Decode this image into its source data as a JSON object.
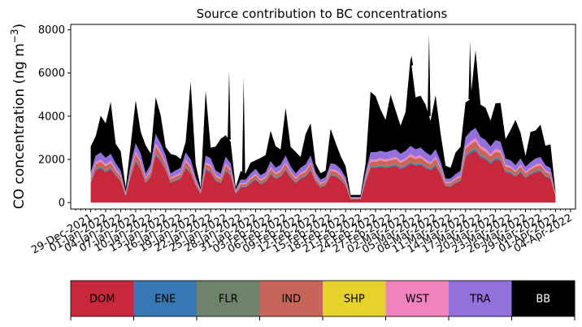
{
  "chart_data": {
    "type": "area",
    "title": "Source contribution to BC concentrations",
    "ylabel": "CO concentration (ng m$^{-3}$)",
    "ylabel_text": "CO concentration (ng m",
    "ylabel_unit_exp": "−3",
    "ylabel_close": ")",
    "xlabel": "",
    "ylim": [
      -300,
      8250
    ],
    "yticks": [
      0,
      2000,
      4000,
      6000,
      8000
    ],
    "yticklabels": [
      "0",
      "2000",
      "4000",
      "6000",
      "8000"
    ],
    "xlim_days": [
      -4,
      97
    ],
    "xticks_days": [
      0,
      3,
      6,
      9,
      12,
      15,
      18,
      21,
      24,
      27,
      30,
      33,
      36,
      39,
      42,
      45,
      48,
      51,
      54,
      57,
      60,
      63,
      66,
      69,
      72,
      75,
      78,
      81,
      84,
      87,
      90,
      93,
      96
    ],
    "xticklabels": [
      "29-Dec-2021",
      "01-Jan-2022",
      "04-Jan-2022",
      "07-Jan-2022",
      "10-Jan-2022",
      "13-Jan-2022",
      "16-Jan-2022",
      "19-Jan-2022",
      "22-Jan-2022",
      "25-Jan-2022",
      "28-Jan-2022",
      "31-Jan-2022",
      "03-Feb-2022",
      "06-Feb-2022",
      "09-Feb-2022",
      "12-Feb-2022",
      "15-Feb-2022",
      "18-Feb-2022",
      "21-Feb-2022",
      "24-Feb-2022",
      "27-Feb-2022",
      "02-Mar-2022",
      "05-Mar-2022",
      "08-Mar-2022",
      "11-Mar-2022",
      "14-Mar-2022",
      "17-Mar-2022",
      "20-Mar-2022",
      "23-Mar-2022",
      "26-Mar-2022",
      "29-Mar-2022",
      "01-Apr-2022",
      "04-Apr-2022"
    ],
    "x_days": [
      0,
      1,
      2,
      3,
      4,
      5,
      6,
      7,
      8,
      9,
      10,
      11,
      12,
      13,
      14,
      15,
      16,
      17,
      18,
      19,
      20,
      21,
      22,
      23,
      24,
      25,
      26,
      27,
      28,
      29,
      30,
      31,
      32,
      33,
      34,
      35,
      36,
      37,
      38,
      39,
      40,
      41,
      42,
      43,
      44,
      45,
      46,
      47,
      48,
      49,
      50,
      51,
      52,
      53,
      54,
      55,
      56,
      57,
      58,
      59,
      60,
      61,
      62,
      63,
      64,
      65,
      66,
      67,
      68,
      69,
      70,
      71,
      72,
      73,
      74,
      75,
      76,
      77,
      78,
      79,
      80,
      81,
      82,
      83,
      84,
      85,
      86,
      87,
      88,
      89,
      90,
      91,
      92,
      93
    ],
    "series": [
      {
        "name": "DOM",
        "color": "#c8283c",
        "values": [
          900,
          1500,
          1600,
          1400,
          1550,
          1250,
          1000,
          300,
          1200,
          1900,
          1550,
          900,
          1200,
          2200,
          1900,
          1500,
          900,
          1000,
          1100,
          1600,
          1350,
          800,
          400,
          1500,
          1400,
          1000,
          900,
          1450,
          1250,
          400,
          700,
          700,
          900,
          1050,
          850,
          950,
          1300,
          1100,
          1200,
          1500,
          1150,
          900,
          1100,
          1200,
          1500,
          950,
          700,
          800,
          1250,
          1200,
          1050,
          800,
          150,
          150,
          150,
          950,
          1600,
          1600,
          1650,
          1600,
          1650,
          1700,
          1550,
          1650,
          1800,
          1700,
          1750,
          1600,
          1500,
          1700,
          1300,
          750,
          750,
          900,
          1000,
          2100,
          2300,
          2400,
          2100,
          2000,
          1800,
          2000,
          1950,
          1400,
          1350,
          1200,
          1400,
          1150,
          1300,
          1400,
          1450,
          1200,
          1100,
          300
        ]
      },
      {
        "name": "ENE",
        "color": "#3778b4",
        "values": [
          40,
          50,
          50,
          50,
          50,
          40,
          30,
          20,
          40,
          60,
          50,
          40,
          40,
          70,
          60,
          50,
          40,
          40,
          40,
          50,
          50,
          30,
          20,
          50,
          50,
          40,
          40,
          50,
          40,
          20,
          30,
          30,
          40,
          40,
          30,
          40,
          50,
          40,
          40,
          50,
          40,
          40,
          40,
          40,
          50,
          40,
          30,
          30,
          40,
          40,
          40,
          30,
          10,
          10,
          10,
          40,
          50,
          50,
          50,
          50,
          50,
          60,
          50,
          50,
          60,
          60,
          60,
          50,
          50,
          60,
          50,
          30,
          30,
          30,
          40,
          70,
          70,
          80,
          70,
          60,
          60,
          60,
          60,
          50,
          50,
          40,
          50,
          40,
          40,
          50,
          50,
          40,
          40,
          10
        ]
      },
      {
        "name": "FLR",
        "color": "#6e826c",
        "values": [
          20,
          30,
          30,
          30,
          30,
          20,
          20,
          10,
          20,
          30,
          30,
          20,
          20,
          40,
          30,
          30,
          20,
          20,
          20,
          30,
          30,
          20,
          10,
          30,
          30,
          20,
          20,
          30,
          20,
          10,
          20,
          20,
          20,
          20,
          20,
          20,
          30,
          20,
          20,
          30,
          20,
          20,
          20,
          20,
          30,
          20,
          20,
          20,
          20,
          20,
          20,
          20,
          10,
          10,
          10,
          20,
          30,
          30,
          30,
          30,
          30,
          30,
          30,
          30,
          30,
          30,
          30,
          30,
          30,
          30,
          30,
          20,
          20,
          20,
          20,
          40,
          40,
          40,
          40,
          40,
          30,
          40,
          40,
          30,
          30,
          20,
          30,
          20,
          20,
          30,
          30,
          20,
          20,
          10
        ]
      },
      {
        "name": "IND",
        "color": "#c8645a",
        "values": [
          150,
          200,
          220,
          200,
          210,
          170,
          140,
          50,
          170,
          260,
          220,
          130,
          170,
          300,
          260,
          200,
          130,
          140,
          150,
          220,
          190,
          110,
          60,
          200,
          190,
          140,
          130,
          200,
          170,
          60,
          100,
          100,
          130,
          150,
          120,
          130,
          180,
          150,
          170,
          200,
          160,
          130,
          150,
          170,
          200,
          130,
          100,
          110,
          170,
          170,
          150,
          110,
          30,
          30,
          30,
          130,
          220,
          220,
          230,
          220,
          230,
          230,
          210,
          230,
          250,
          230,
          240,
          220,
          200,
          230,
          180,
          100,
          100,
          120,
          140,
          280,
          300,
          320,
          280,
          270,
          240,
          270,
          260,
          190,
          180,
          160,
          190,
          150,
          170,
          190,
          200,
          160,
          150,
          40
        ]
      },
      {
        "name": "SHP",
        "color": "#e6d22d",
        "values": [
          10,
          10,
          10,
          10,
          10,
          10,
          10,
          5,
          10,
          10,
          10,
          10,
          10,
          15,
          10,
          10,
          10,
          10,
          10,
          10,
          10,
          10,
          5,
          10,
          10,
          10,
          10,
          10,
          10,
          5,
          10,
          10,
          10,
          10,
          10,
          10,
          10,
          10,
          10,
          10,
          10,
          10,
          10,
          10,
          10,
          10,
          10,
          10,
          10,
          10,
          10,
          10,
          5,
          5,
          5,
          10,
          10,
          10,
          10,
          10,
          10,
          10,
          10,
          10,
          15,
          10,
          10,
          10,
          10,
          10,
          10,
          10,
          10,
          10,
          10,
          15,
          15,
          15,
          15,
          15,
          10,
          15,
          15,
          10,
          10,
          10,
          10,
          10,
          10,
          10,
          10,
          10,
          10,
          5
        ]
      },
      {
        "name": "WST",
        "color": "#f082be",
        "values": [
          60,
          80,
          90,
          80,
          90,
          70,
          60,
          20,
          70,
          100,
          90,
          50,
          70,
          120,
          100,
          80,
          50,
          60,
          60,
          90,
          80,
          40,
          20,
          80,
          80,
          60,
          50,
          80,
          70,
          20,
          40,
          40,
          50,
          60,
          50,
          50,
          70,
          60,
          70,
          80,
          60,
          50,
          60,
          70,
          80,
          50,
          40,
          40,
          70,
          70,
          60,
          40,
          10,
          10,
          10,
          50,
          90,
          90,
          90,
          90,
          90,
          90,
          90,
          90,
          100,
          90,
          100,
          90,
          80,
          90,
          70,
          40,
          40,
          50,
          60,
          110,
          120,
          130,
          110,
          110,
          100,
          110,
          100,
          80,
          70,
          60,
          80,
          60,
          70,
          80,
          80,
          60,
          60,
          20
        ]
      },
      {
        "name": "TRA",
        "color": "#9370dc",
        "values": [
          220,
          300,
          320,
          300,
          320,
          260,
          220,
          80,
          260,
          380,
          330,
          200,
          260,
          430,
          380,
          300,
          200,
          220,
          230,
          320,
          290,
          170,
          90,
          300,
          290,
          220,
          200,
          300,
          260,
          90,
          160,
          160,
          200,
          230,
          190,
          200,
          280,
          230,
          250,
          310,
          240,
          200,
          230,
          260,
          310,
          200,
          160,
          170,
          260,
          260,
          230,
          170,
          40,
          40,
          40,
          200,
          330,
          330,
          340,
          330,
          340,
          350,
          320,
          340,
          370,
          350,
          360,
          330,
          310,
          350,
          270,
          160,
          160,
          190,
          210,
          420,
          450,
          470,
          420,
          400,
          360,
          400,
          390,
          280,
          270,
          240,
          280,
          230,
          260,
          280,
          290,
          240,
          220,
          60
        ]
      },
      {
        "name": "BB",
        "color": "#000000",
        "values": [
          1200,
          900,
          1700,
          1600,
          2400,
          900,
          900,
          200,
          900,
          2000,
          1000,
          1300,
          500,
          1700,
          1300,
          400,
          900,
          700,
          400,
          500,
          3600,
          600,
          100,
          3000,
          500,
          1100,
          1600,
          1000,
          1000,
          100,
          400,
          300,
          500,
          400,
          800,
          800,
          1400,
          1000,
          700,
          2200,
          900,
          1000,
          500,
          1400,
          1500,
          400,
          300,
          300,
          1600,
          1000,
          600,
          500,
          100,
          100,
          100,
          400,
          2800,
          2600,
          1900,
          1500,
          2600,
          1800,
          1300,
          1800,
          4100,
          2400,
          2400,
          2200,
          1600,
          2500,
          1300,
          600,
          500,
          1000,
          1100,
          1600,
          1500,
          3600,
          1500,
          1500,
          1200,
          1700,
          1800,
          900,
          1400,
          2100,
          1200,
          500,
          1400,
          1300,
          1500,
          900,
          1100,
          50
        ]
      }
    ],
    "spikes": [
      {
        "x": 27.7,
        "y": 6100
      },
      {
        "x": 30.6,
        "y": 5750
      },
      {
        "x": 64.2,
        "y": 6800
      },
      {
        "x": 67.7,
        "y": 7800
      },
      {
        "x": 75.9,
        "y": 7500
      }
    ],
    "legend": {
      "placement": "bottom",
      "entries": [
        {
          "label": "DOM",
          "color": "#c8283c",
          "text_color": "#000000"
        },
        {
          "label": "ENE",
          "color": "#3778b4",
          "text_color": "#000000"
        },
        {
          "label": "FLR",
          "color": "#6e826c",
          "text_color": "#000000"
        },
        {
          "label": "IND",
          "color": "#c8645a",
          "text_color": "#000000"
        },
        {
          "label": "SHP",
          "color": "#e6d22d",
          "text_color": "#000000"
        },
        {
          "label": "WST",
          "color": "#f082be",
          "text_color": "#000000"
        },
        {
          "label": "TRA",
          "color": "#9370dc",
          "text_color": "#000000"
        },
        {
          "label": "BB",
          "color": "#000000",
          "text_color": "#ffffff"
        }
      ]
    }
  }
}
